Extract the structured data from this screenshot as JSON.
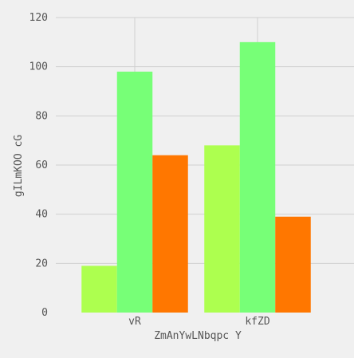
{
  "chart_data": {
    "type": "bar",
    "title": "",
    "xlabel": "ZmAnYwLNbqpc Y",
    "ylabel": "gILmKOO cG",
    "categories": [
      "vR",
      "kfZD"
    ],
    "series": [
      {
        "values": [
          19,
          68
        ],
        "color": "#adff4f"
      },
      {
        "values": [
          98,
          110
        ],
        "color": "#77ff77"
      },
      {
        "values": [
          64,
          39
        ],
        "color": "#ff7700"
      }
    ],
    "ylim": [
      0,
      120
    ],
    "yticks": [
      0,
      20,
      40,
      60,
      80,
      100,
      120
    ],
    "grid": true,
    "legend": "none",
    "background": "#f0f0f0",
    "grid_color": "#d0d0d0"
  }
}
